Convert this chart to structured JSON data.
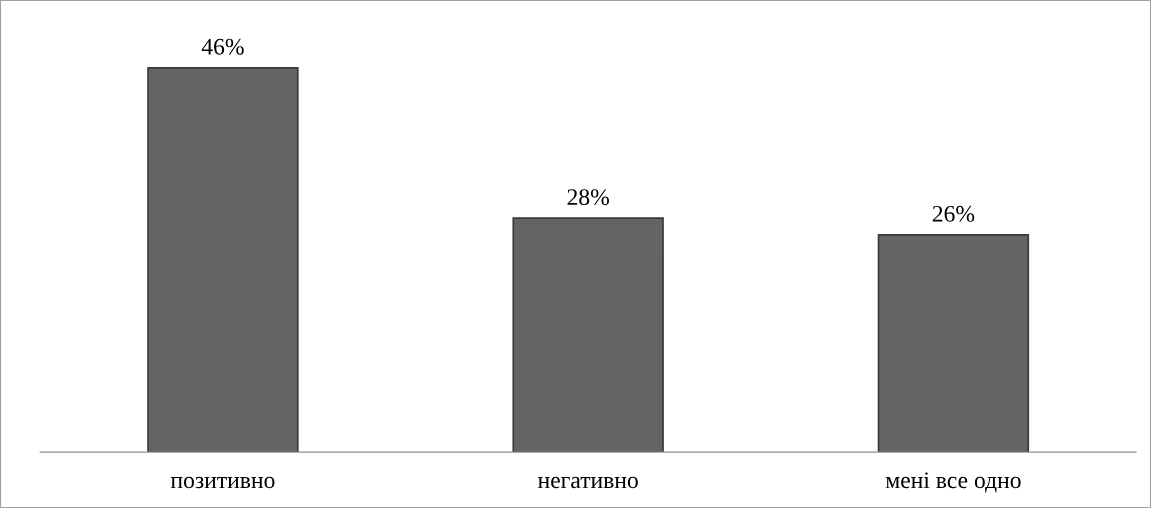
{
  "chart_data": {
    "type": "bar",
    "categories": [
      "позитивно",
      "негативно",
      "мені все одно"
    ],
    "values": [
      46,
      28,
      26
    ],
    "value_labels": [
      "46%",
      "28%",
      "26%"
    ],
    "color": "#646464",
    "grid": false,
    "legend": false
  }
}
